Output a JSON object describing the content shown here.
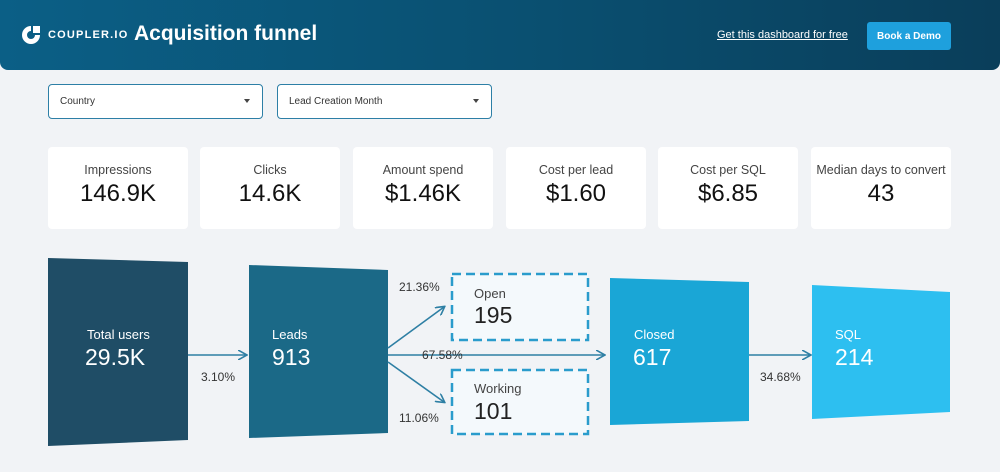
{
  "header": {
    "logo_text": "COUPLER.IO",
    "title": "Acquisition funnel",
    "link_text": "Get this dashboard for free",
    "demo_button": "Book a Demo"
  },
  "filters": [
    {
      "label": "Country"
    },
    {
      "label": "Lead Creation Month"
    }
  ],
  "kpis": [
    {
      "label": "Impressions",
      "value": "146.9K"
    },
    {
      "label": "Clicks",
      "value": "14.6K"
    },
    {
      "label": "Amount spend",
      "value": "$1.46K"
    },
    {
      "label": "Cost per lead",
      "value": "$1.60"
    },
    {
      "label": "Cost per SQL",
      "value": "$6.85"
    },
    {
      "label": "Median days to convert",
      "value": "43"
    }
  ],
  "funnel": {
    "total_users": {
      "label": "Total users",
      "value": "29.5K"
    },
    "leads": {
      "label": "Leads",
      "value": "913"
    },
    "open": {
      "label": "Open",
      "value": "195"
    },
    "working": {
      "label": "Working",
      "value": "101"
    },
    "closed": {
      "label": "Closed",
      "value": "617"
    },
    "sql": {
      "label": "SQL",
      "value": "214"
    },
    "rates": {
      "users_to_leads": "3.10%",
      "leads_to_open": "21.36%",
      "leads_to_closed": "67.58%",
      "leads_to_working": "11.06%",
      "closed_to_sql": "34.68%"
    }
  },
  "colors": {
    "total_users": "#1f4d66",
    "leads": "#1b6987",
    "closed": "#1aa6d6",
    "sql": "#2dbff0",
    "dashed": "#2a9ccc"
  }
}
